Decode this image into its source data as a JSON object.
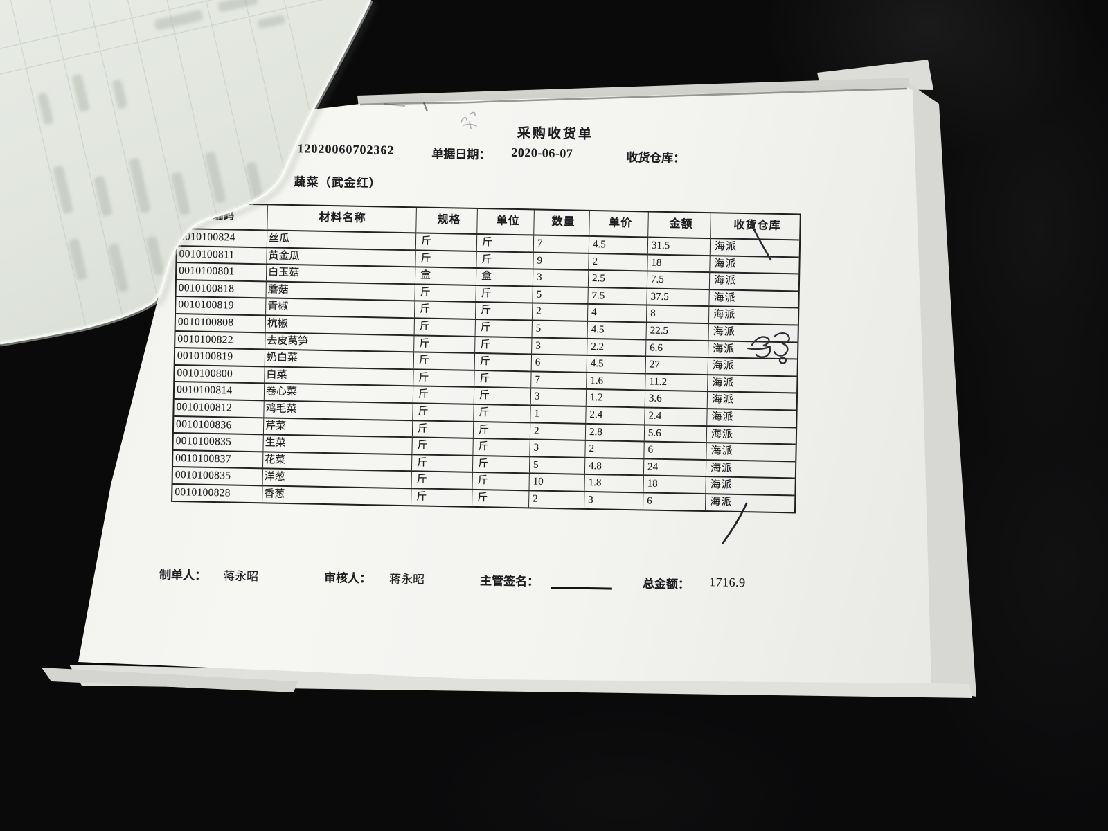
{
  "photo": {
    "background_color": "#0a0a0b",
    "paper_color": "#f3f3f0",
    "ghost_paper_color": "#e2e6df",
    "ink_color": "#1d1d20"
  },
  "document": {
    "title": "采购收货单",
    "doc_number": "12020060702362",
    "date_label": "单据日期：",
    "date_value": "2020-06-07",
    "warehouse_label": "收货仓库：",
    "category": "蔬菜（武金红）",
    "table": {
      "headers": [
        "编码",
        "材料名称",
        "规格",
        "单位",
        "数量",
        "单价",
        "金额",
        "收货仓库"
      ],
      "rows": [
        [
          "0010100824",
          "丝瓜",
          "斤",
          "斤",
          "7",
          "4.5",
          "31.5",
          "海派"
        ],
        [
          "0010100811",
          "黄金瓜",
          "斤",
          "斤",
          "9",
          "2",
          "18",
          "海派"
        ],
        [
          "0010100801",
          "白玉菇",
          "盒",
          "盒",
          "3",
          "2.5",
          "7.5",
          "海派"
        ],
        [
          "0010100818",
          "蘑菇",
          "斤",
          "斤",
          "5",
          "7.5",
          "37.5",
          "海派"
        ],
        [
          "0010100819",
          "青椒",
          "斤",
          "斤",
          "2",
          "4",
          "8",
          "海派"
        ],
        [
          "0010100808",
          "杭椒",
          "斤",
          "斤",
          "5",
          "4.5",
          "22.5",
          "海派"
        ],
        [
          "0010100822",
          "去皮莴笋",
          "斤",
          "斤",
          "3",
          "2.2",
          "6.6",
          "海派"
        ],
        [
          "0010100819",
          "奶白菜",
          "斤",
          "斤",
          "6",
          "4.5",
          "27",
          "海派"
        ],
        [
          "0010100800",
          "白菜",
          "斤",
          "斤",
          "7",
          "1.6",
          "11.2",
          "海派"
        ],
        [
          "0010100814",
          "卷心菜",
          "斤",
          "斤",
          "3",
          "1.2",
          "3.6",
          "海派"
        ],
        [
          "0010100812",
          "鸡毛菜",
          "斤",
          "斤",
          "1",
          "2.4",
          "2.4",
          "海派"
        ],
        [
          "0010100836",
          "芹菜",
          "斤",
          "斤",
          "2",
          "2.8",
          "5.6",
          "海派"
        ],
        [
          "0010100835",
          "生菜",
          "斤",
          "斤",
          "3",
          "2",
          "6",
          "海派"
        ],
        [
          "0010100837",
          "花菜",
          "斤",
          "斤",
          "5",
          "4.8",
          "24",
          "海派"
        ],
        [
          "0010100835",
          "洋葱",
          "斤",
          "斤",
          "10",
          "1.8",
          "18",
          "海派"
        ],
        [
          "0010100828",
          "香葱",
          "斤",
          "斤",
          "2",
          "3",
          "6",
          "海派"
        ]
      ]
    },
    "footer": {
      "maker_label": "制单人：",
      "maker_name": "蒋永昭",
      "reviewer_label": "审核人：",
      "reviewer_name": "蒋永昭",
      "supervisor_label": "主管签名：",
      "total_label": "总金额：",
      "total_value": "1716.9"
    },
    "handwritten_marks": [
      "pen-slash-rows-1-2",
      "pen-signature-row-7",
      "pen-slash-row-16",
      "pencil-scribble-above-title"
    ]
  }
}
